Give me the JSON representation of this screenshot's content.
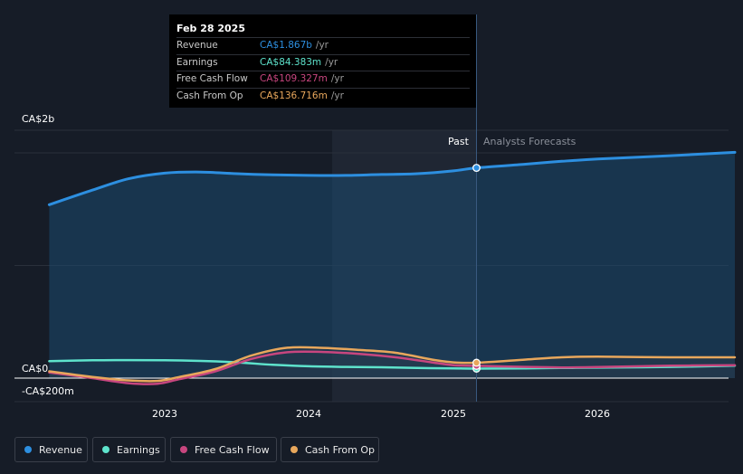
{
  "chart_data": {
    "type": "area",
    "y_unit": "CA$",
    "ylim": [
      -200000000,
      2200000000
    ],
    "x_range": [
      2022.2,
      2026.95
    ],
    "y_tick_labels": [
      {
        "label": "CA$2b",
        "value": 2000000000
      },
      {
        "label": "CA$0",
        "value": 0
      },
      {
        "label": "-CA$200m",
        "value": -200000000
      }
    ],
    "x_tick_labels": [
      {
        "label": "2023",
        "value": 2023.0
      },
      {
        "label": "2024",
        "value": 2024.0
      },
      {
        "label": "2025",
        "value": 2025.0
      },
      {
        "label": "2026",
        "value": 2026.0
      }
    ],
    "divider_x": 2025.16,
    "past_shade_start_x": 2024.16,
    "past_label": "Past",
    "forecast_label": "Analysts Forecasts",
    "series": [
      {
        "name": "Revenue",
        "color": "#2d8fe0",
        "filled": true,
        "points": [
          [
            2022.2,
            1540000000
          ],
          [
            2022.5,
            1670000000
          ],
          [
            2022.75,
            1770000000
          ],
          [
            2023.0,
            1820000000
          ],
          [
            2023.25,
            1830000000
          ],
          [
            2023.5,
            1815000000
          ],
          [
            2023.75,
            1805000000
          ],
          [
            2024.0,
            1800000000
          ],
          [
            2024.25,
            1800000000
          ],
          [
            2024.5,
            1808000000
          ],
          [
            2024.75,
            1815000000
          ],
          [
            2025.0,
            1840000000
          ],
          [
            2025.16,
            1867000000
          ],
          [
            2025.5,
            1900000000
          ],
          [
            2025.75,
            1925000000
          ],
          [
            2026.0,
            1945000000
          ],
          [
            2026.5,
            1975000000
          ],
          [
            2026.95,
            2005000000
          ]
        ]
      },
      {
        "name": "Earnings",
        "color": "#5ee3cc",
        "filled": false,
        "points": [
          [
            2022.2,
            150000000
          ],
          [
            2022.5,
            158000000
          ],
          [
            2022.75,
            160000000
          ],
          [
            2023.0,
            159000000
          ],
          [
            2023.25,
            153000000
          ],
          [
            2023.5,
            140000000
          ],
          [
            2023.75,
            118000000
          ],
          [
            2024.0,
            105000000
          ],
          [
            2024.25,
            100000000
          ],
          [
            2024.5,
            96000000
          ],
          [
            2024.75,
            90000000
          ],
          [
            2025.0,
            87000000
          ],
          [
            2025.16,
            84383000
          ],
          [
            2025.5,
            87000000
          ],
          [
            2025.75,
            90000000
          ],
          [
            2026.0,
            93000000
          ],
          [
            2026.5,
            100000000
          ],
          [
            2026.95,
            110000000
          ]
        ]
      },
      {
        "name": "Free Cash Flow",
        "color": "#c8467f",
        "filled": false,
        "points": [
          [
            2022.2,
            50000000
          ],
          [
            2022.5,
            0
          ],
          [
            2022.75,
            -45000000
          ],
          [
            2022.95,
            -50000000
          ],
          [
            2023.1,
            -10000000
          ],
          [
            2023.35,
            60000000
          ],
          [
            2023.6,
            170000000
          ],
          [
            2023.85,
            230000000
          ],
          [
            2024.1,
            232000000
          ],
          [
            2024.35,
            215000000
          ],
          [
            2024.6,
            185000000
          ],
          [
            2024.85,
            140000000
          ],
          [
            2025.0,
            115000000
          ],
          [
            2025.16,
            109327000
          ],
          [
            2025.5,
            100000000
          ],
          [
            2025.75,
            95000000
          ],
          [
            2026.0,
            98000000
          ],
          [
            2026.5,
            110000000
          ],
          [
            2026.95,
            115000000
          ]
        ]
      },
      {
        "name": "Cash From Op",
        "color": "#e8a75c",
        "filled": false,
        "points": [
          [
            2022.2,
            60000000
          ],
          [
            2022.5,
            10000000
          ],
          [
            2022.75,
            -20000000
          ],
          [
            2022.95,
            -25000000
          ],
          [
            2023.1,
            10000000
          ],
          [
            2023.35,
            80000000
          ],
          [
            2023.6,
            200000000
          ],
          [
            2023.85,
            270000000
          ],
          [
            2024.1,
            268000000
          ],
          [
            2024.35,
            250000000
          ],
          [
            2024.6,
            225000000
          ],
          [
            2024.85,
            165000000
          ],
          [
            2025.0,
            140000000
          ],
          [
            2025.16,
            136716000
          ],
          [
            2025.5,
            165000000
          ],
          [
            2025.75,
            185000000
          ],
          [
            2026.0,
            190000000
          ],
          [
            2026.5,
            185000000
          ],
          [
            2026.95,
            185000000
          ]
        ]
      }
    ]
  },
  "tooltip": {
    "date": "Feb 28 2025",
    "rows": [
      {
        "label": "Revenue",
        "value": "CA$1.867b",
        "unit": "/yr",
        "color": "#2d8fe0"
      },
      {
        "label": "Earnings",
        "value": "CA$84.383m",
        "unit": "/yr",
        "color": "#5ee3cc"
      },
      {
        "label": "Free Cash Flow",
        "value": "CA$109.327m",
        "unit": "/yr",
        "color": "#c8467f"
      },
      {
        "label": "Cash From Op",
        "value": "CA$136.716m",
        "unit": "/yr",
        "color": "#e8a75c"
      }
    ]
  },
  "legend": [
    {
      "label": "Revenue",
      "color": "#2d8fe0"
    },
    {
      "label": "Earnings",
      "color": "#5ee3cc"
    },
    {
      "label": "Free Cash Flow",
      "color": "#c8467f"
    },
    {
      "label": "Cash From Op",
      "color": "#e8a75c"
    }
  ]
}
